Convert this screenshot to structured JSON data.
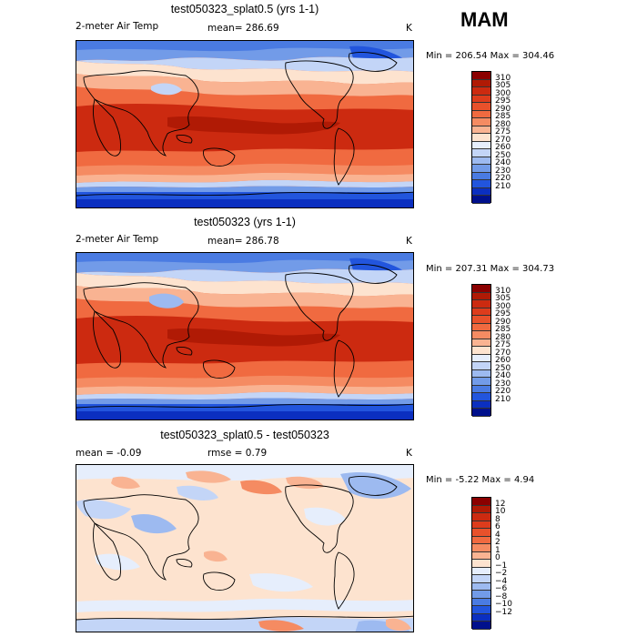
{
  "season": "MAM",
  "panels": [
    {
      "title": "test050323_splat0.5 (yrs 1-1)",
      "left_label": "2-meter Air Temp",
      "mean_text": "mean= 286.69",
      "units": "K",
      "minmax": "Min = 206.54 Max = 304.46"
    },
    {
      "title": "test050323 (yrs 1-1)",
      "left_label": "2-meter Air Temp",
      "mean_text": "mean= 286.78",
      "units": "K",
      "minmax": "Min = 207.31 Max = 304.73"
    },
    {
      "title": "test050323_splat0.5 - test050323",
      "left_label": "mean =   -0.09",
      "mean_text": "rmse =    0.79",
      "units": "K",
      "minmax": "Min =  -5.22 Max =    4.94"
    }
  ],
  "colorbars": {
    "temperature": {
      "labels": [
        "310",
        "305",
        "300",
        "295",
        "290",
        "285",
        "280",
        "275",
        "270",
        "260",
        "250",
        "240",
        "230",
        "220",
        "210"
      ],
      "colors": [
        "#8b0000",
        "#b01a05",
        "#cc2a10",
        "#dd3c1c",
        "#e8512b",
        "#f06a40",
        "#f58b62",
        "#f9b392",
        "#fde3cf",
        "#e6eefc",
        "#c3d5f7",
        "#9dbaf0",
        "#729be8",
        "#4a7be2",
        "#2255dd",
        "#0b2fc0",
        "#00108c"
      ]
    },
    "difference": {
      "labels": [
        "12",
        "10",
        "8",
        "6",
        "4",
        "2",
        "1",
        "0",
        "−1",
        "−2",
        "−4",
        "−6",
        "−8",
        "−10",
        "−12"
      ],
      "colors": [
        "#8b0000",
        "#b01a05",
        "#cc2a10",
        "#dd3c1c",
        "#e8512b",
        "#f06a40",
        "#f58b62",
        "#f9b392",
        "#fde3cf",
        "#e6eefc",
        "#c3d5f7",
        "#9dbaf0",
        "#729be8",
        "#4a7be2",
        "#2255dd",
        "#0b2fc0",
        "#00108c"
      ]
    }
  },
  "chart_data": [
    {
      "type": "heatmap",
      "title": "test050323_splat0.5 (yrs 1-1)",
      "variable": "2-meter Air Temp",
      "units": "K",
      "mean": 286.69,
      "min": 206.54,
      "max": 304.46,
      "contour_levels": [
        210,
        220,
        230,
        240,
        250,
        260,
        270,
        275,
        280,
        285,
        290,
        295,
        300,
        305,
        310
      ]
    },
    {
      "type": "heatmap",
      "title": "test050323 (yrs 1-1)",
      "variable": "2-meter Air Temp",
      "units": "K",
      "mean": 286.78,
      "min": 207.31,
      "max": 304.73,
      "contour_levels": [
        210,
        220,
        230,
        240,
        250,
        260,
        270,
        275,
        280,
        285,
        290,
        295,
        300,
        305,
        310
      ]
    },
    {
      "type": "heatmap",
      "title": "test050323_splat0.5 - test050323",
      "units": "K",
      "mean": -0.09,
      "rmse": 0.79,
      "min": -5.22,
      "max": 4.94,
      "contour_levels": [
        -12,
        -10,
        -8,
        -6,
        -4,
        -2,
        -1,
        0,
        1,
        2,
        4,
        6,
        8,
        10,
        12
      ]
    }
  ]
}
